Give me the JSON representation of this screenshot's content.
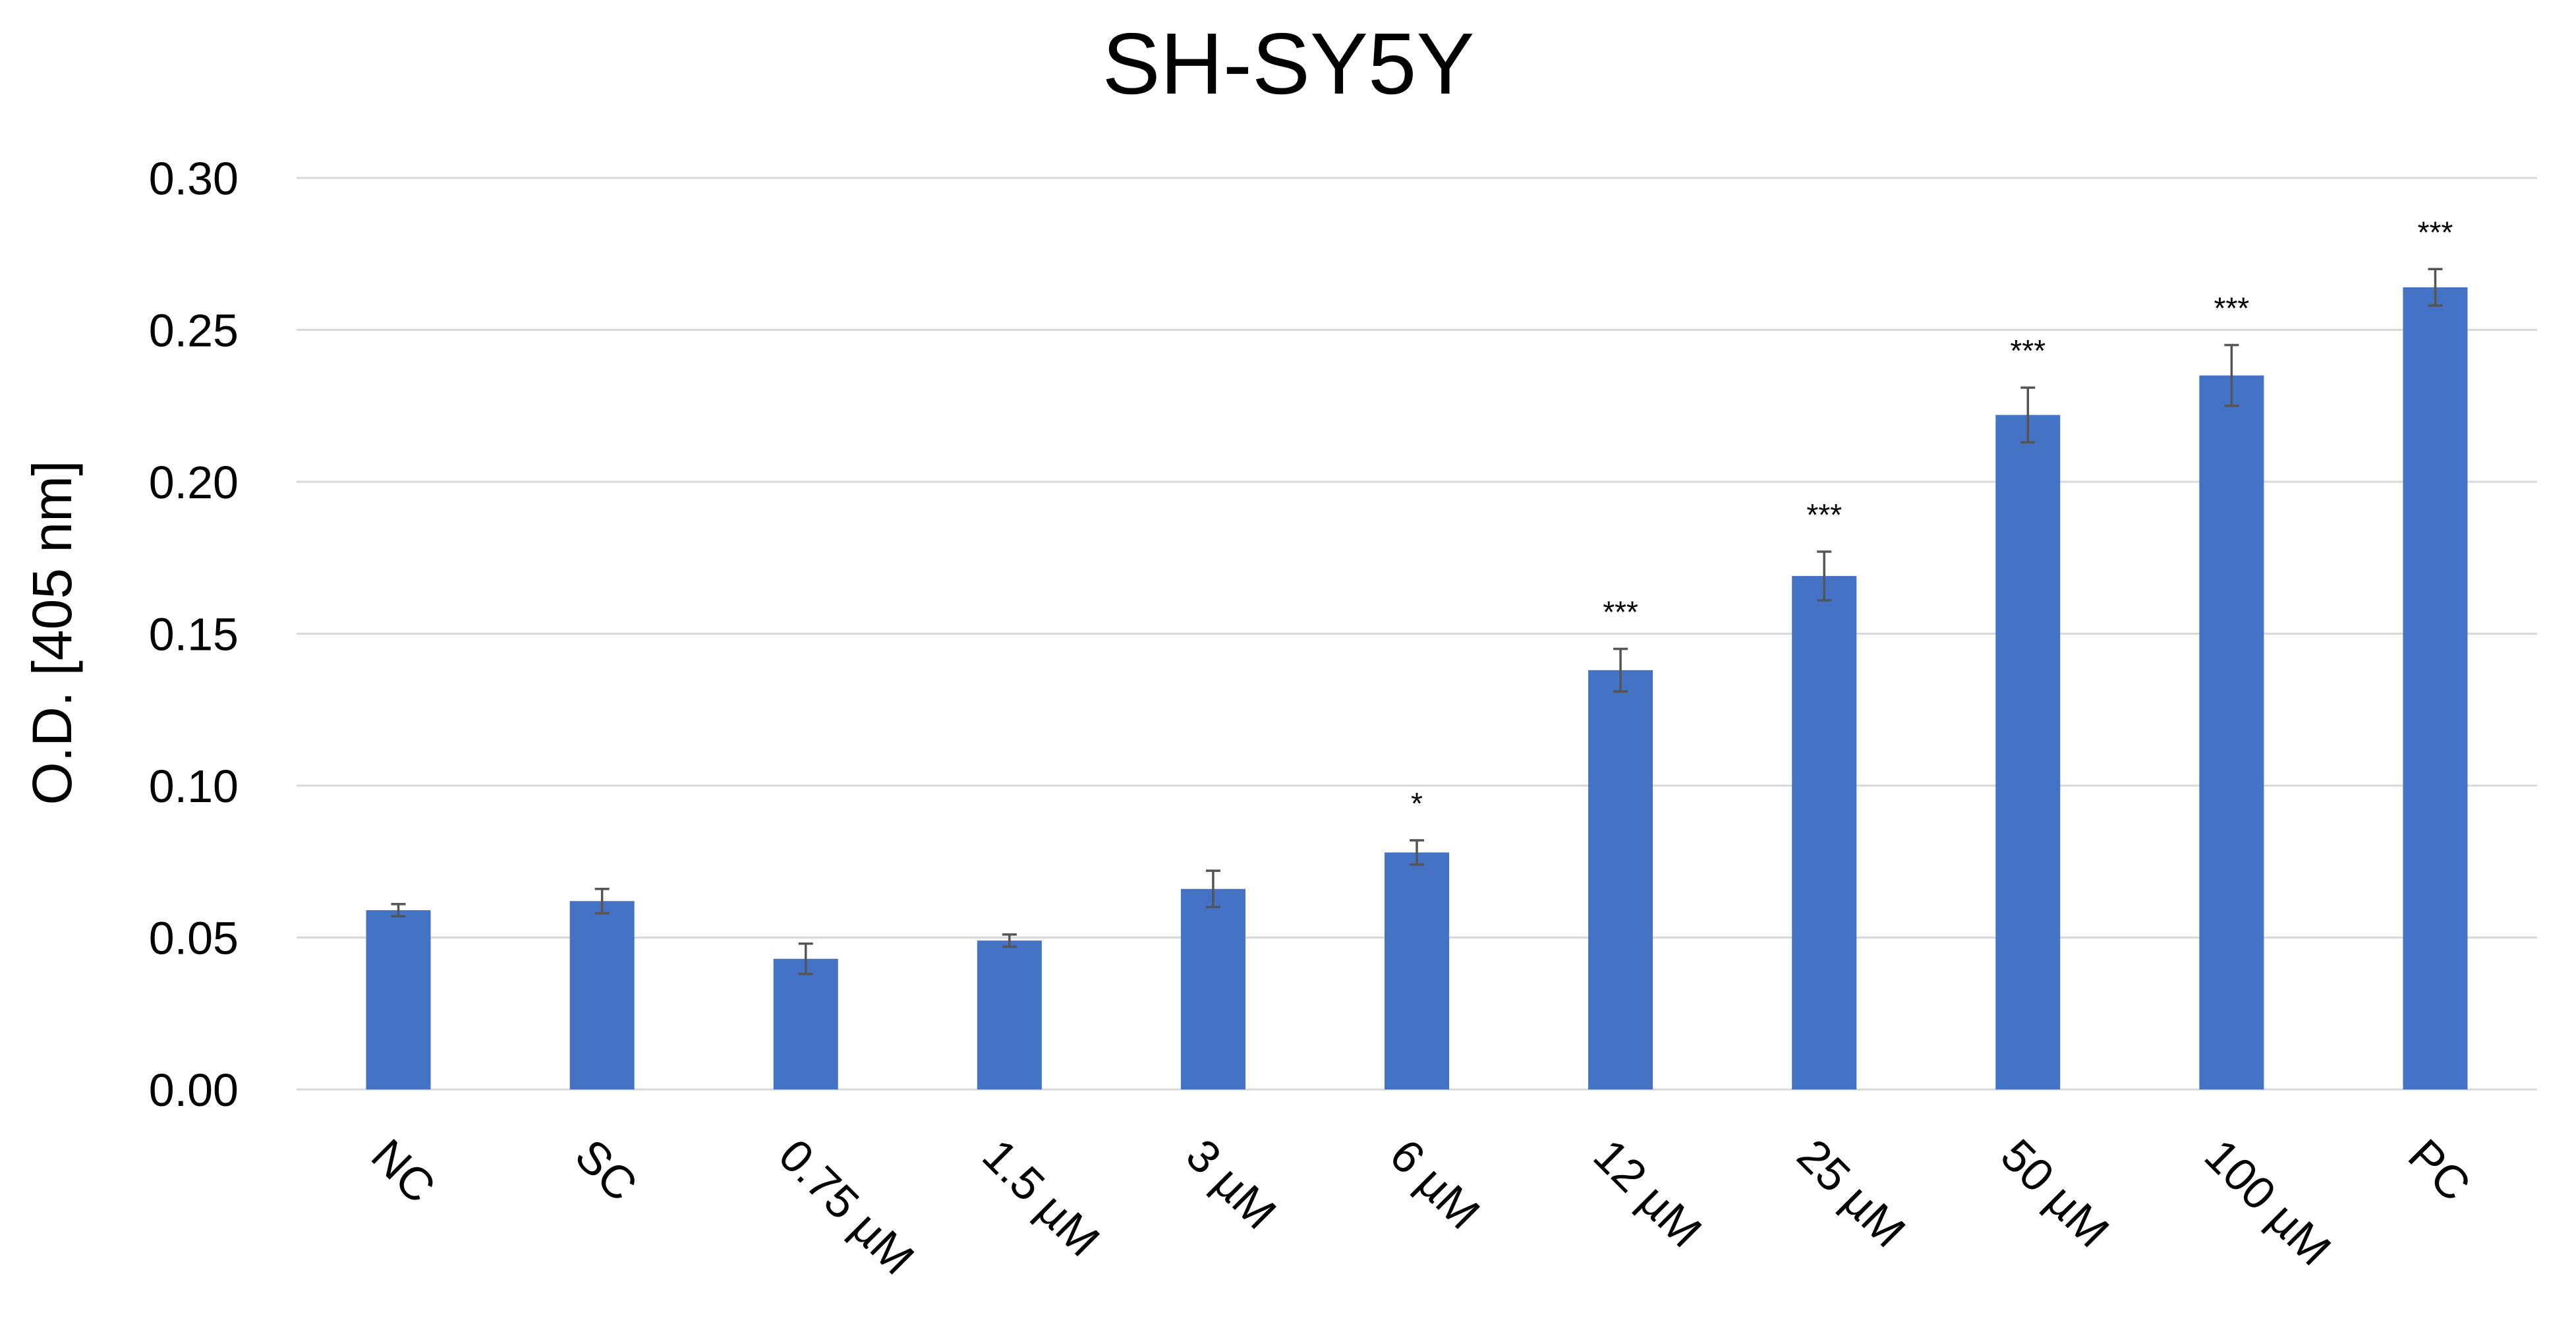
{
  "chart_data": {
    "type": "bar",
    "title": "SH-SY5Y",
    "xlabel": "",
    "ylabel": "O.D. [405 nm]",
    "ylim": [
      0,
      0.3
    ],
    "yticks": [
      "0.00",
      "0.05",
      "0.10",
      "0.15",
      "0.20",
      "0.25",
      "0.30"
    ],
    "grid": true,
    "legend": "none",
    "bar_color": "#4472c4",
    "categories": [
      "NC",
      "SC",
      "0.75 µM",
      "1.5 µM",
      "3 µM",
      "6 µM",
      "12 µM",
      "25 µM",
      "50 µM",
      "100 µM",
      "PC"
    ],
    "values": [
      0.059,
      0.062,
      0.043,
      0.049,
      0.066,
      0.078,
      0.138,
      0.169,
      0.222,
      0.235,
      0.264
    ],
    "errors": [
      0.002,
      0.004,
      0.005,
      0.002,
      0.006,
      0.004,
      0.007,
      0.008,
      0.009,
      0.01,
      0.006
    ],
    "significance": [
      "",
      "",
      "",
      "",
      "",
      "*",
      "***",
      "***",
      "***",
      "***",
      "***"
    ]
  }
}
